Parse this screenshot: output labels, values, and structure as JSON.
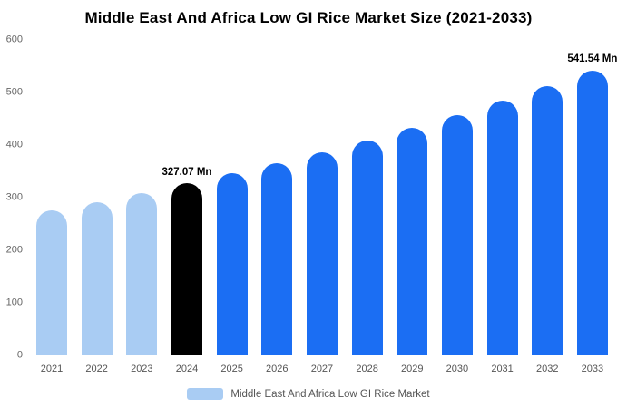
{
  "chart_data": {
    "type": "bar",
    "title": "Middle East And Africa Low GI Rice Market Size (2021-2033)",
    "unit": "Mn",
    "xlabel": "",
    "ylabel": "",
    "ylim": [
      0,
      600
    ],
    "yticks": [
      0,
      100,
      200,
      300,
      400,
      500,
      600
    ],
    "grid": false,
    "legend": "Middle East And Africa Low GI Rice Market",
    "legend_position": "bottom",
    "legend_color": "#A9CCF3",
    "colors": {
      "historical": "#A9CCF3",
      "highlight": "#000000",
      "forecast": "#1B6EF3"
    },
    "categories": [
      "2021",
      "2022",
      "2023",
      "2024",
      "2025",
      "2026",
      "2027",
      "2028",
      "2029",
      "2030",
      "2031",
      "2032",
      "2033"
    ],
    "points": [
      {
        "year": "2021",
        "value": 276.4,
        "segment": "historical"
      },
      {
        "year": "2022",
        "value": 292.3,
        "segment": "historical"
      },
      {
        "year": "2023",
        "value": 309.2,
        "segment": "historical"
      },
      {
        "year": "2024",
        "value": 327.07,
        "segment": "highlight",
        "label": "327.07 Mn"
      },
      {
        "year": "2025",
        "value": 345.9,
        "segment": "forecast"
      },
      {
        "year": "2026",
        "value": 365.8,
        "segment": "forecast"
      },
      {
        "year": "2027",
        "value": 386.9,
        "segment": "forecast"
      },
      {
        "year": "2028",
        "value": 409.2,
        "segment": "forecast"
      },
      {
        "year": "2029",
        "value": 432.7,
        "segment": "forecast"
      },
      {
        "year": "2030",
        "value": 457.7,
        "segment": "forecast"
      },
      {
        "year": "2031",
        "value": 484.0,
        "segment": "forecast"
      },
      {
        "year": "2032",
        "value": 511.9,
        "segment": "forecast"
      },
      {
        "year": "2033",
        "value": 541.54,
        "segment": "forecast",
        "label": "541.54 Mn"
      }
    ]
  }
}
